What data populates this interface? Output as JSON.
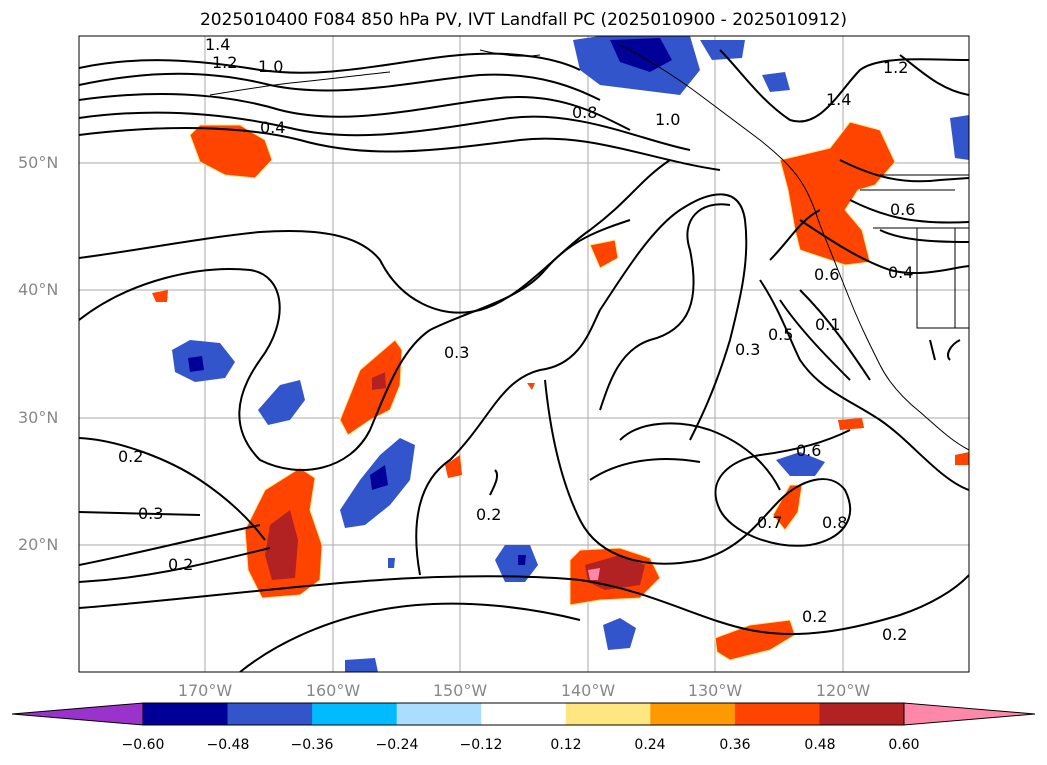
{
  "title": "2025010400 F084 850 hPa PV, IVT Landfall PC (2025010900 - 2025010912)",
  "lat_labels": [
    "50°N",
    "40°N",
    "30°N",
    "20°N"
  ],
  "lon_labels": [
    "170°W",
    "160°W",
    "150°W",
    "140°W",
    "130°W",
    "120°W"
  ],
  "contour_labels": [
    "1.4",
    "1.2",
    "1.0",
    "0.4",
    "0.8",
    "1.0",
    "1.4",
    "1.2",
    "0.6",
    "0.4",
    "0.6",
    "0.1",
    "0.5",
    "0.3",
    "0.3",
    "0.2",
    "0.3",
    "0.2",
    "0.2",
    "0.6",
    "0.7",
    "0.8",
    "0.2",
    "0.2"
  ],
  "colorbar": {
    "ticks": [
      "−0.60",
      "−0.48",
      "−0.36",
      "−0.24",
      "−0.12",
      "0.12",
      "0.24",
      "0.36",
      "0.48",
      "0.60"
    ],
    "colors": [
      "#9933cc",
      "#000099",
      "#3355cc",
      "#00bbff",
      "#aaddff",
      "#ffffff",
      "#ffe680",
      "#ff9900",
      "#ff4400",
      "#b22222",
      "#ff88aa"
    ]
  }
}
